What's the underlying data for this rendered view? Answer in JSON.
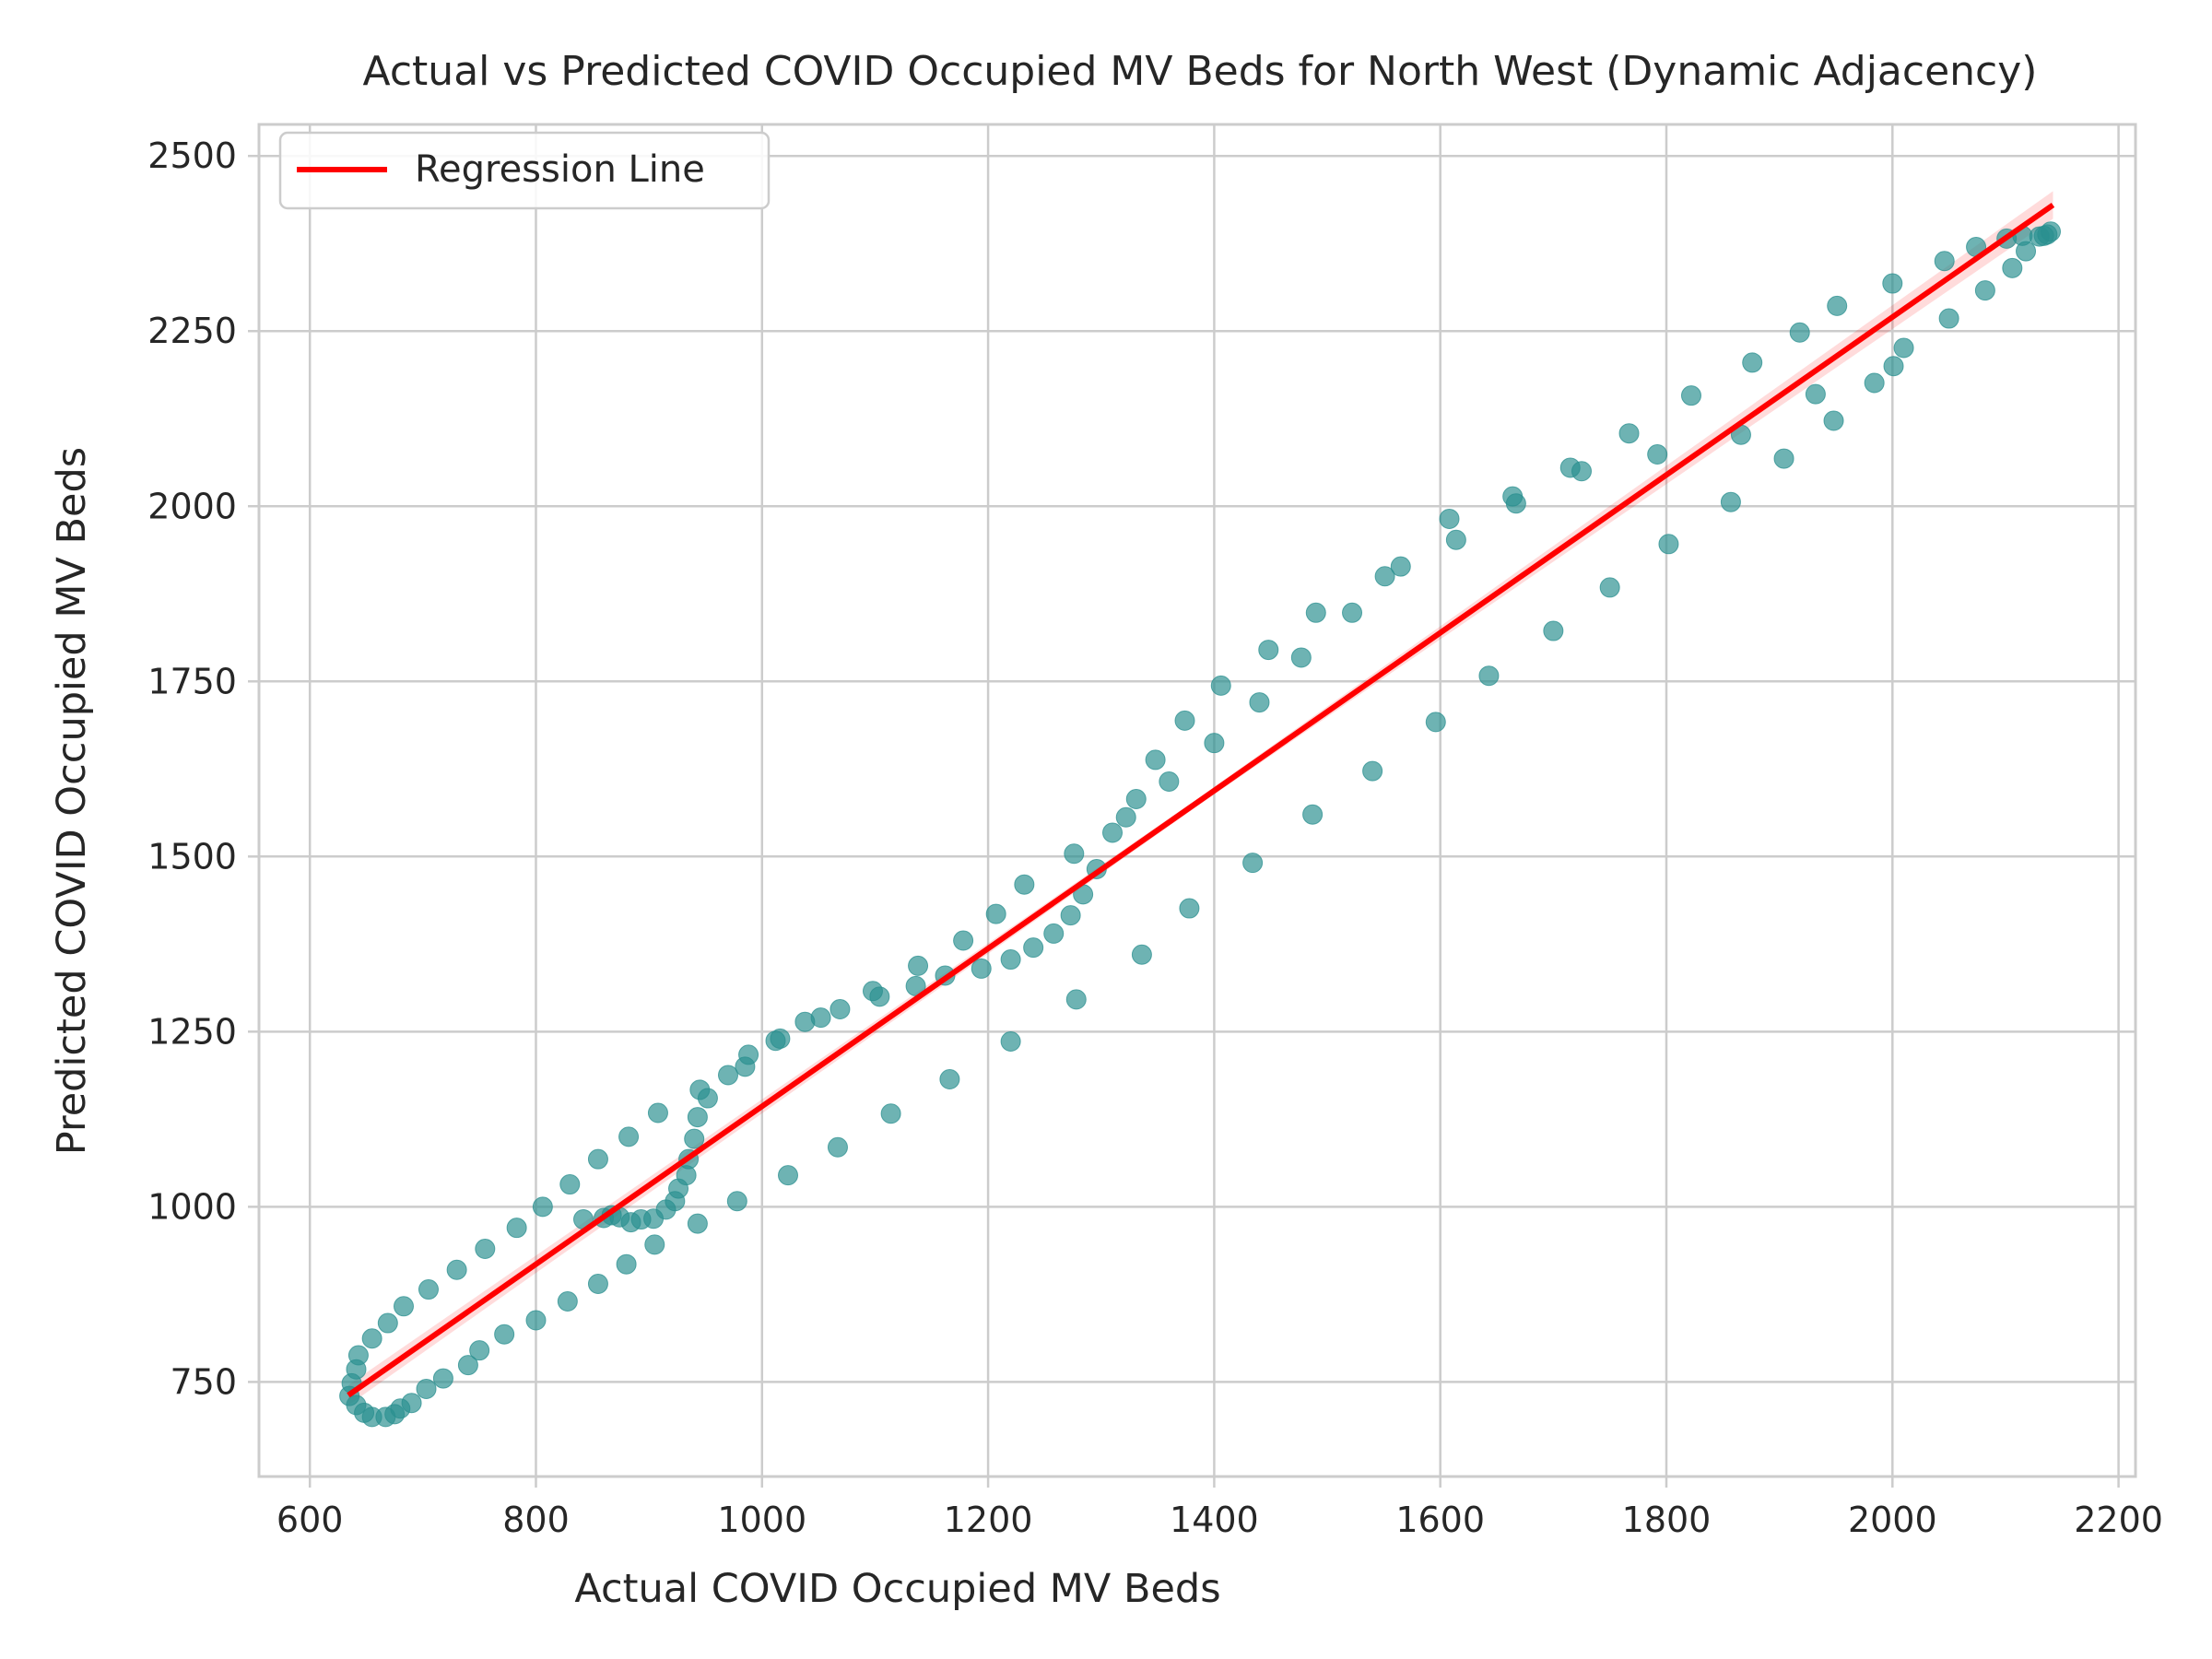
{
  "chart_data": {
    "type": "scatter",
    "title": "Actual vs Predicted COVID Occupied MV Beds for North West (Dynamic Adjacency)",
    "xlabel": "Actual COVID Occupied MV Beds",
    "ylabel": "Predicted COVID Occupied MV Beds",
    "xlim": [
      555,
      2215
    ],
    "ylim": [
      615,
      2545
    ],
    "xticks": [
      600,
      800,
      1000,
      1200,
      1400,
      1600,
      1800,
      2000,
      2200
    ],
    "yticks": [
      750,
      1000,
      1250,
      1500,
      1750,
      2000,
      2250,
      2500
    ],
    "grid": true,
    "legend_position": "top-left",
    "legend": [
      {
        "label": "Regression Line",
        "color": "#ff0000"
      }
    ],
    "point_color": "#2a8f8f",
    "regression_line": {
      "x": [
        634,
        2142
      ],
      "y": [
        731,
        2430
      ]
    },
    "points": [
      [
        635,
        730
      ],
      [
        637,
        748
      ],
      [
        641,
        717
      ],
      [
        641,
        768
      ],
      [
        643,
        788
      ],
      [
        648,
        706
      ],
      [
        655,
        700
      ],
      [
        655,
        812
      ],
      [
        667,
        700
      ],
      [
        669,
        834
      ],
      [
        675,
        704
      ],
      [
        680,
        712
      ],
      [
        683,
        858
      ],
      [
        690,
        720
      ],
      [
        703,
        740
      ],
      [
        705,
        882
      ],
      [
        718,
        755
      ],
      [
        730,
        910
      ],
      [
        740,
        774
      ],
      [
        750,
        795
      ],
      [
        755,
        940
      ],
      [
        772,
        818
      ],
      [
        783,
        970
      ],
      [
        800,
        838
      ],
      [
        806,
        1000
      ],
      [
        828,
        865
      ],
      [
        830,
        1032
      ],
      [
        842,
        982
      ],
      [
        855,
        890
      ],
      [
        855,
        1068
      ],
      [
        860,
        984
      ],
      [
        867,
        988
      ],
      [
        874,
        985
      ],
      [
        880,
        918
      ],
      [
        882,
        1100
      ],
      [
        884,
        978
      ],
      [
        893,
        982
      ],
      [
        904,
        983
      ],
      [
        905,
        946
      ],
      [
        908,
        1134
      ],
      [
        915,
        996
      ],
      [
        923,
        1008
      ],
      [
        926,
        1026
      ],
      [
        933,
        1045
      ],
      [
        935,
        1068
      ],
      [
        940,
        1097
      ],
      [
        943,
        976
      ],
      [
        943,
        1128
      ],
      [
        945,
        1167
      ],
      [
        952,
        1155
      ],
      [
        970,
        1188
      ],
      [
        978,
        1008
      ],
      [
        985,
        1200
      ],
      [
        988,
        1217
      ],
      [
        1012,
        1237
      ],
      [
        1016,
        1240
      ],
      [
        1023,
        1045
      ],
      [
        1038,
        1264
      ],
      [
        1052,
        1270
      ],
      [
        1067,
        1085
      ],
      [
        1069,
        1282
      ],
      [
        1098,
        1308
      ],
      [
        1104,
        1300
      ],
      [
        1114,
        1133
      ],
      [
        1136,
        1315
      ],
      [
        1138,
        1344
      ],
      [
        1162,
        1330
      ],
      [
        1166,
        1182
      ],
      [
        1178,
        1380
      ],
      [
        1194,
        1340
      ],
      [
        1207,
        1418
      ],
      [
        1220,
        1236
      ],
      [
        1220,
        1353
      ],
      [
        1232,
        1460
      ],
      [
        1240,
        1370
      ],
      [
        1258,
        1390
      ],
      [
        1273,
        1416
      ],
      [
        1276,
        1504
      ],
      [
        1278,
        1296
      ],
      [
        1284,
        1446
      ],
      [
        1296,
        1482
      ],
      [
        1310,
        1534
      ],
      [
        1322,
        1556
      ],
      [
        1331,
        1582
      ],
      [
        1336,
        1360
      ],
      [
        1348,
        1638
      ],
      [
        1360,
        1607
      ],
      [
        1374,
        1694
      ],
      [
        1378,
        1426
      ],
      [
        1400,
        1662
      ],
      [
        1406,
        1744
      ],
      [
        1434,
        1491
      ],
      [
        1440,
        1720
      ],
      [
        1448,
        1795
      ],
      [
        1477,
        1784
      ],
      [
        1487,
        1560
      ],
      [
        1490,
        1848
      ],
      [
        1522,
        1848
      ],
      [
        1540,
        1622
      ],
      [
        1551,
        1900
      ],
      [
        1565,
        1914
      ],
      [
        1596,
        1692
      ],
      [
        1608,
        1982
      ],
      [
        1614,
        1952
      ],
      [
        1643,
        1758
      ],
      [
        1664,
        2014
      ],
      [
        1667,
        2004
      ],
      [
        1700,
        1822
      ],
      [
        1715,
        2055
      ],
      [
        1725,
        2050
      ],
      [
        1750,
        1884
      ],
      [
        1767,
        2104
      ],
      [
        1792,
        2074
      ],
      [
        1802,
        1946
      ],
      [
        1822,
        2158
      ],
      [
        1857,
        2006
      ],
      [
        1866,
        2102
      ],
      [
        1876,
        2205
      ],
      [
        1904,
        2068
      ],
      [
        1918,
        2248
      ],
      [
        1932,
        2160
      ],
      [
        1948,
        2122
      ],
      [
        1951,
        2286
      ],
      [
        1984,
        2176
      ],
      [
        2000,
        2318
      ],
      [
        2001,
        2200
      ],
      [
        2010,
        2226
      ],
      [
        2046,
        2350
      ],
      [
        2050,
        2268
      ],
      [
        2074,
        2370
      ],
      [
        2082,
        2308
      ],
      [
        2101,
        2382
      ],
      [
        2106,
        2340
      ],
      [
        2115,
        2386
      ],
      [
        2118,
        2364
      ],
      [
        2130,
        2385
      ],
      [
        2134,
        2386
      ],
      [
        2137,
        2388
      ],
      [
        2140,
        2392
      ]
    ]
  }
}
